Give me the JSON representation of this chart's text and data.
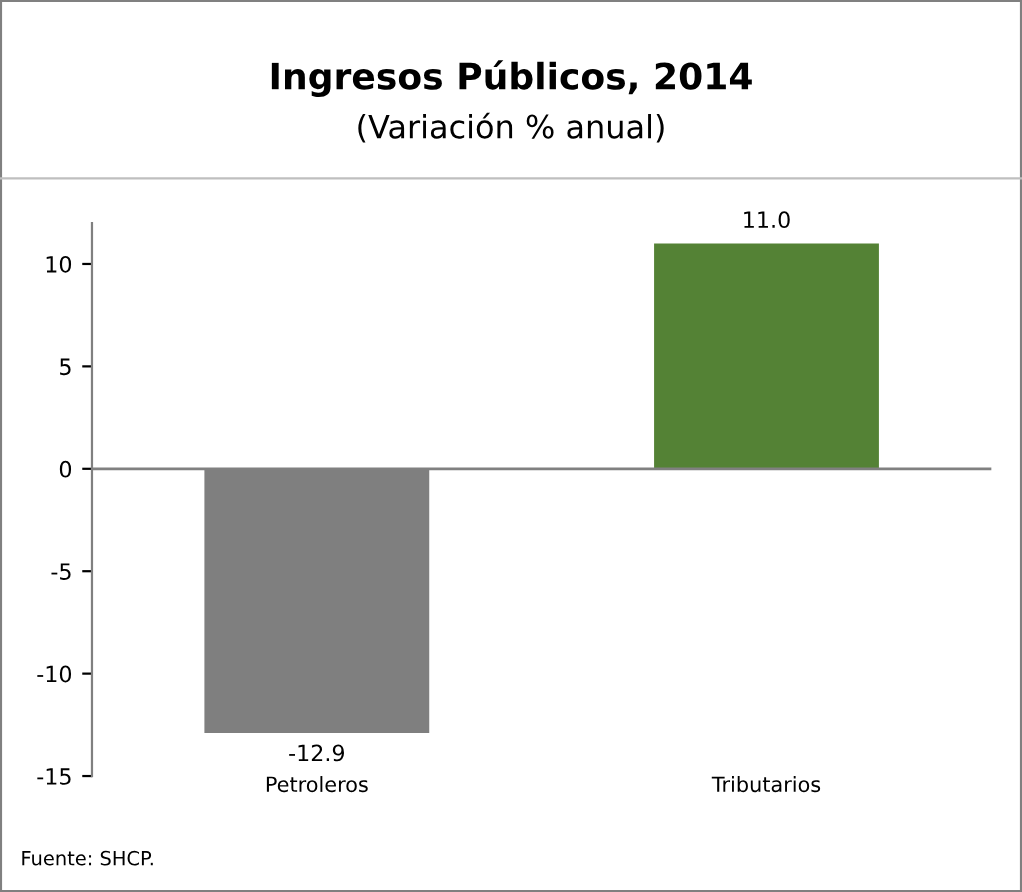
{
  "chart_data": {
    "type": "bar",
    "title": "Ingresos Públicos, 2014",
    "subtitle": "(Variación % anual)",
    "categories": [
      "Petroleros",
      "Tributarios"
    ],
    "values": [
      -12.9,
      11.0
    ],
    "colors": [
      "#7f7f7f",
      "#548235"
    ],
    "value_labels": [
      "-12.9",
      "11.0"
    ],
    "ylim": [
      -15,
      12
    ],
    "yticks": [
      -15,
      -10,
      -5,
      0,
      5,
      10
    ],
    "annotations": [
      "Fuente: SHCP."
    ]
  }
}
